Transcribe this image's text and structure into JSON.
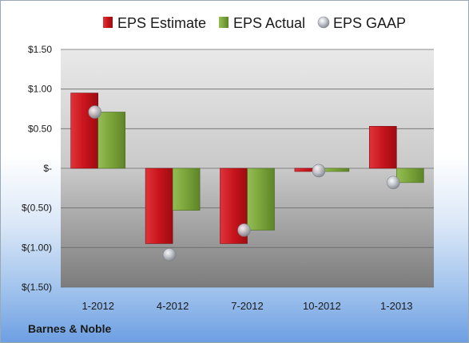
{
  "colors": {
    "estimate": "#c8141c",
    "actual": "#7aa33a",
    "gaap": "#b9bcc3"
  },
  "chart_data": {
    "type": "bar",
    "categories": [
      "1-2012",
      "4-2012",
      "7-2012",
      "10-2012",
      "1-2013"
    ],
    "series": [
      {
        "name": "EPS Estimate",
        "kind": "bar",
        "values": [
          0.95,
          -0.95,
          -0.95,
          -0.04,
          0.53
        ]
      },
      {
        "name": "EPS Actual",
        "kind": "bar",
        "values": [
          0.71,
          -0.53,
          -0.78,
          -0.04,
          -0.18
        ]
      },
      {
        "name": "EPS GAAP",
        "kind": "marker",
        "values": [
          0.71,
          -1.09,
          -0.78,
          -0.03,
          -0.18
        ]
      }
    ],
    "ylim": [
      -1.5,
      1.5
    ],
    "ytick_values": [
      1.5,
      1.0,
      0.5,
      0,
      -0.5,
      -1.0,
      -1.5
    ],
    "ytick_labels": [
      "$1.50",
      "$1.00",
      "$0.50",
      "$-",
      "$(0.50)",
      "$(1.00)",
      "$(1.50)"
    ],
    "grid": true,
    "legend_position": "top",
    "company": "Barnes & Noble"
  }
}
